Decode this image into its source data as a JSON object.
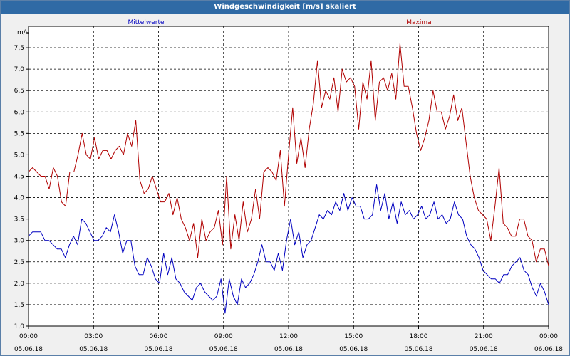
{
  "window": {
    "title": "Windgeschwindigkeit [m/s] skaliert"
  },
  "chart_data": {
    "type": "line",
    "title": "Windgeschwindigkeit [m/s] skaliert",
    "ylabel": "m/s",
    "ylim": [
      1.0,
      8.0
    ],
    "xlim": [
      0,
      24
    ],
    "grid": true,
    "yticks": [
      1.0,
      1.5,
      2.0,
      2.5,
      3.0,
      3.5,
      4.0,
      4.5,
      5.0,
      5.5,
      6.0,
      6.5,
      7.0,
      7.5
    ],
    "ytick_labels": [
      "1,0",
      "1,5",
      "2,0",
      "2,5",
      "3,0",
      "3,5",
      "4,0",
      "4,5",
      "5,0",
      "5,5",
      "6,0",
      "6,5",
      "7,0",
      "7,5"
    ],
    "xticks": [
      0,
      3,
      6,
      9,
      12,
      15,
      18,
      21,
      24
    ],
    "xtick_labels": [
      {
        "time": "00:00",
        "date": "05.06.18"
      },
      {
        "time": "03:00",
        "date": "05.06.18"
      },
      {
        "time": "06:00",
        "date": "05.06.18"
      },
      {
        "time": "09:00",
        "date": "05.06.18"
      },
      {
        "time": "12:00",
        "date": "05.06.18"
      },
      {
        "time": "15:00",
        "date": "05.06.18"
      },
      {
        "time": "18:00",
        "date": "05.06.18"
      },
      {
        "time": "21:00",
        "date": "05.06.18"
      },
      {
        "time": "00:00",
        "date": "06.06.18"
      }
    ],
    "series": [
      {
        "name": "Mittelwerte",
        "color": "#0000c0",
        "values": [
          3.1,
          3.2,
          3.2,
          3.2,
          3.0,
          3.0,
          2.9,
          2.8,
          2.8,
          2.6,
          2.9,
          3.1,
          2.9,
          3.5,
          3.4,
          3.2,
          3.0,
          3.0,
          3.1,
          3.3,
          3.2,
          3.6,
          3.2,
          2.7,
          3.0,
          3.0,
          2.4,
          2.2,
          2.2,
          2.6,
          2.4,
          2.1,
          2.0,
          2.7,
          2.2,
          2.6,
          2.1,
          2.0,
          1.8,
          1.7,
          1.6,
          1.9,
          2.0,
          1.8,
          1.7,
          1.6,
          1.7,
          2.1,
          1.3,
          2.1,
          1.7,
          1.5,
          2.1,
          1.9,
          2.0,
          2.2,
          2.5,
          2.9,
          2.5,
          2.5,
          2.3,
          2.7,
          2.3,
          3.0,
          3.5,
          2.9,
          3.2,
          2.6,
          2.9,
          3.0,
          3.3,
          3.6,
          3.5,
          3.7,
          3.6,
          3.9,
          3.7,
          4.1,
          3.7,
          4.0,
          3.8,
          3.8,
          3.5,
          3.5,
          3.6,
          4.3,
          3.7,
          4.1,
          3.5,
          3.9,
          3.4,
          3.9,
          3.6,
          3.7,
          3.5,
          3.6,
          3.8,
          3.5,
          3.6,
          3.9,
          3.5,
          3.6,
          3.4,
          3.5,
          3.9,
          3.6,
          3.5,
          3.1,
          2.9,
          2.8,
          2.6,
          2.3,
          2.2,
          2.1,
          2.1,
          2.0,
          2.2,
          2.2,
          2.4,
          2.5,
          2.6,
          2.3,
          2.2,
          1.9,
          1.7,
          2.0,
          1.8,
          1.5
        ]
      },
      {
        "name": "Maxima",
        "color": "#b00000",
        "values": [
          4.6,
          4.7,
          4.6,
          4.5,
          4.5,
          4.2,
          4.7,
          4.5,
          3.9,
          3.8,
          4.6,
          4.6,
          5.0,
          5.5,
          5.0,
          4.9,
          5.4,
          4.9,
          5.1,
          5.1,
          4.9,
          5.1,
          5.2,
          5.0,
          5.5,
          5.2,
          5.8,
          4.4,
          4.1,
          4.2,
          4.5,
          4.2,
          3.9,
          3.9,
          4.1,
          3.6,
          4.0,
          3.5,
          3.3,
          3.0,
          3.4,
          2.6,
          3.5,
          3.0,
          3.2,
          3.3,
          3.7,
          2.9,
          4.5,
          2.8,
          3.6,
          3.0,
          3.9,
          3.2,
          3.5,
          4.2,
          3.5,
          4.6,
          4.7,
          4.6,
          4.4,
          5.1,
          3.8,
          5.0,
          6.1,
          4.8,
          5.4,
          4.7,
          5.6,
          6.2,
          7.2,
          6.1,
          6.5,
          6.3,
          6.8,
          6.0,
          7.0,
          6.7,
          6.8,
          6.6,
          5.6,
          6.7,
          6.3,
          7.2,
          5.8,
          6.7,
          6.8,
          6.5,
          6.9,
          6.3,
          7.6,
          6.6,
          6.6,
          6.1,
          5.5,
          5.1,
          5.4,
          5.8,
          6.5,
          6.0,
          6.0,
          5.6,
          5.9,
          6.4,
          5.8,
          6.1,
          5.3,
          4.5,
          4.0,
          3.7,
          3.6,
          3.5,
          3.0,
          3.8,
          4.7,
          3.4,
          3.3,
          3.1,
          3.1,
          3.5,
          3.5,
          3.1,
          3.0,
          2.5,
          2.8,
          2.8,
          2.4
        ]
      }
    ]
  }
}
